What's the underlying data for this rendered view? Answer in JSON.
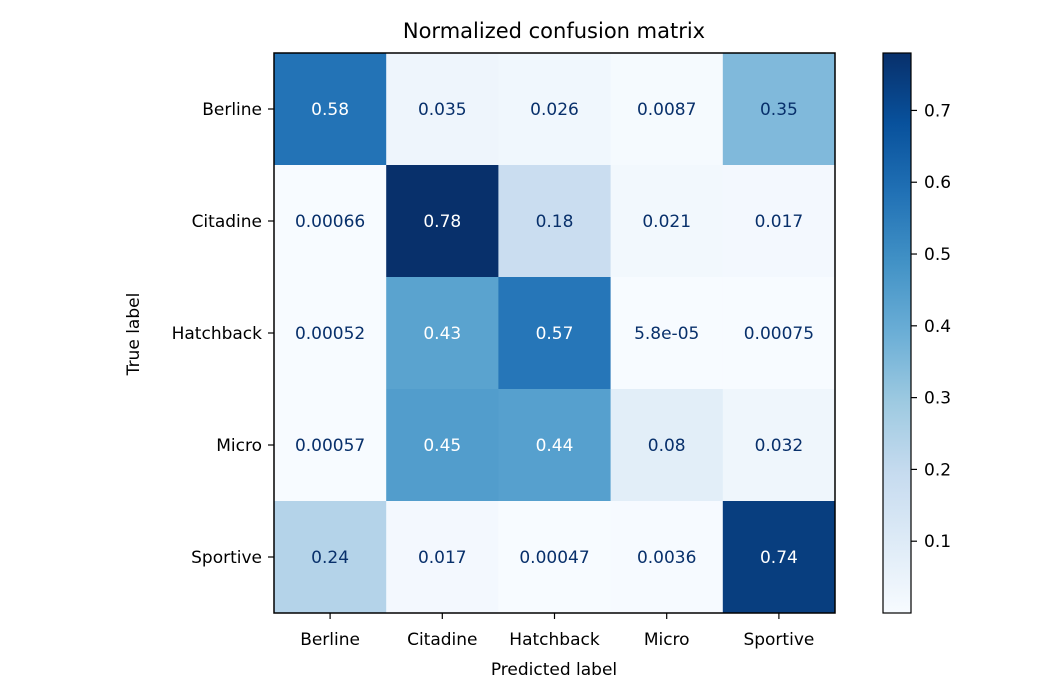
{
  "chart_data": {
    "type": "heatmap",
    "title": "Normalized confusion matrix",
    "xlabel": "Predicted label",
    "ylabel": "True label",
    "x_categories": [
      "Berline",
      "Citadine",
      "Hatchback",
      "Micro",
      "Sportive"
    ],
    "y_categories": [
      "Berline",
      "Citadine",
      "Hatchback",
      "Micro",
      "Sportive"
    ],
    "values": [
      [
        0.58,
        0.035,
        0.026,
        0.0087,
        0.35
      ],
      [
        0.00066,
        0.78,
        0.18,
        0.021,
        0.017
      ],
      [
        0.00052,
        0.43,
        0.57,
        5.8e-05,
        0.00075
      ],
      [
        0.00057,
        0.45,
        0.44,
        0.08,
        0.032
      ],
      [
        0.24,
        0.017,
        0.00047,
        0.0036,
        0.74
      ]
    ],
    "labels": [
      [
        "0.58",
        "0.035",
        "0.026",
        "0.0087",
        "0.35"
      ],
      [
        "0.00066",
        "0.78",
        "0.18",
        "0.021",
        "0.017"
      ],
      [
        "0.00052",
        "0.43",
        "0.57",
        "5.8e-05",
        "0.00075"
      ],
      [
        "0.00057",
        "0.45",
        "0.44",
        "0.08",
        "0.032"
      ],
      [
        "0.24",
        "0.017",
        "0.00047",
        "0.0036",
        "0.74"
      ]
    ],
    "colormap": "Blues",
    "colorbar": {
      "range": [
        0.0,
        0.78
      ],
      "ticks": [
        0.1,
        0.2,
        0.3,
        0.4,
        0.5,
        0.6,
        0.7
      ],
      "tick_labels": [
        "0.1",
        "0.2",
        "0.3",
        "0.4",
        "0.5",
        "0.6",
        "0.7"
      ]
    },
    "grid": false
  }
}
